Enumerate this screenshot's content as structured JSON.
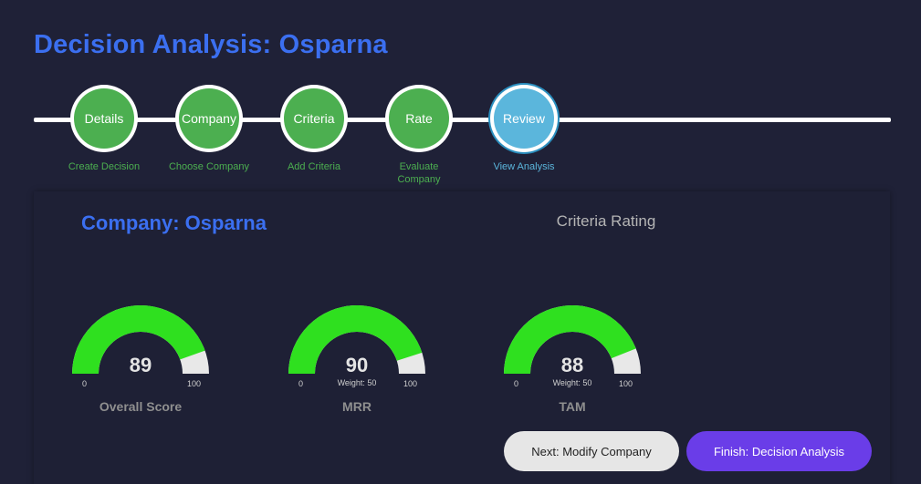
{
  "page": {
    "title": "Decision Analysis: Osparna"
  },
  "colors": {
    "background": "#1f2137",
    "title_blue": "#3b6ff0",
    "step_complete": "#4caf50",
    "step_active": "#5bb6dc",
    "gauge_fill": "#2fe01f",
    "gauge_track": "#e8e8e8",
    "primary_button": "#6a3de8"
  },
  "stepper": {
    "steps": [
      {
        "label": "Details",
        "caption": "Create Decision",
        "status": "complete"
      },
      {
        "label": "Company",
        "caption": "Choose Company",
        "status": "complete"
      },
      {
        "label": "Criteria",
        "caption": "Add Criteria",
        "status": "complete"
      },
      {
        "label": "Rate",
        "caption": "Evaluate Company",
        "status": "complete"
      },
      {
        "label": "Review",
        "caption": "View Analysis",
        "status": "active"
      }
    ]
  },
  "card": {
    "company_title": "Company: Osparna",
    "criteria_heading": "Criteria Rating"
  },
  "gauges": [
    {
      "label": "Overall Score",
      "value": "89",
      "score": 89,
      "min": "0",
      "max": "100",
      "weight": ""
    },
    {
      "label": "MRR",
      "value": "90",
      "score": 90,
      "min": "0",
      "max": "100",
      "weight": "Weight: 50"
    },
    {
      "label": "TAM",
      "value": "88",
      "score": 88,
      "min": "0",
      "max": "100",
      "weight": "Weight: 50"
    }
  ],
  "actions": {
    "modify_label": "Next: Modify Company",
    "finish_label": "Finish: Decision Analysis"
  }
}
